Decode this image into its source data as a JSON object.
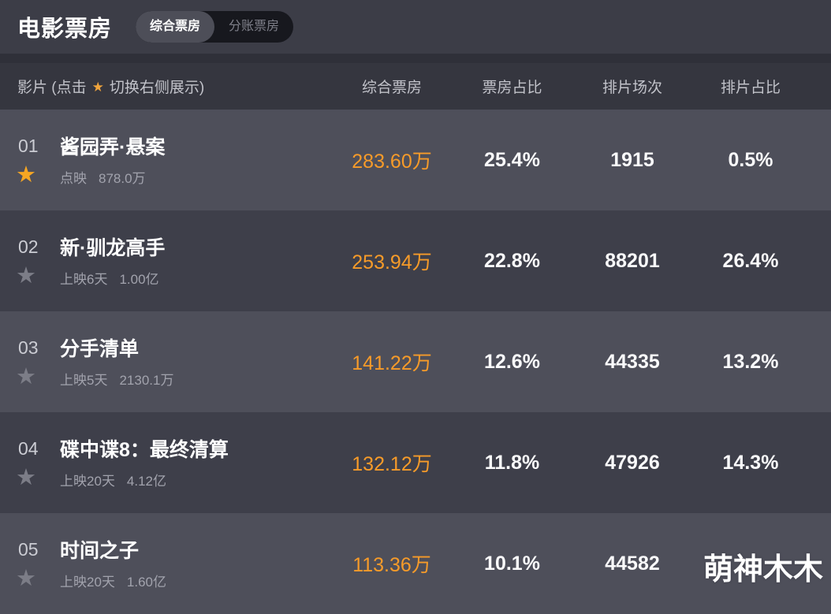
{
  "page": {
    "title": "电影票房"
  },
  "tabs": [
    {
      "label": "综合票房",
      "active": true
    },
    {
      "label": "分账票房",
      "active": false
    }
  ],
  "icons": {
    "star": "★"
  },
  "colors": {
    "accent_orange": "#F79B29",
    "star_orange": "#F6A623",
    "row_light": "#4E4F5A",
    "row_dark": "#3E3F4A"
  },
  "table": {
    "film_header": {
      "pre": "影片 (点击",
      "post": "切换右侧展示)"
    },
    "columns": [
      "综合票房",
      "票房占比",
      "排片场次",
      "排片占比"
    ],
    "rows": [
      {
        "rank": "01",
        "starred": true,
        "title": "酱园弄·悬案",
        "status": "点映",
        "gross": "878.0万",
        "box_office": "283.60万",
        "box_share": "25.4%",
        "screenings": "1915",
        "screening_share": "0.5%"
      },
      {
        "rank": "02",
        "starred": false,
        "title": "新·驯龙高手",
        "status": "上映6天",
        "gross": "1.00亿",
        "box_office": "253.94万",
        "box_share": "22.8%",
        "screenings": "88201",
        "screening_share": "26.4%"
      },
      {
        "rank": "03",
        "starred": false,
        "title": "分手清单",
        "status": "上映5天",
        "gross": "2130.1万",
        "box_office": "141.22万",
        "box_share": "12.6%",
        "screenings": "44335",
        "screening_share": "13.2%"
      },
      {
        "rank": "04",
        "starred": false,
        "title": "碟中谍8：最终清算",
        "status": "上映20天",
        "gross": "4.12亿",
        "box_office": "132.12万",
        "box_share": "11.8%",
        "screenings": "47926",
        "screening_share": "14.3%"
      },
      {
        "rank": "05",
        "starred": false,
        "title": "时间之子",
        "status": "上映20天",
        "gross": "1.60亿",
        "box_office": "113.36万",
        "box_share": "10.1%",
        "screenings": "44582",
        "screening_share": ""
      }
    ]
  },
  "watermark": "萌神木木"
}
